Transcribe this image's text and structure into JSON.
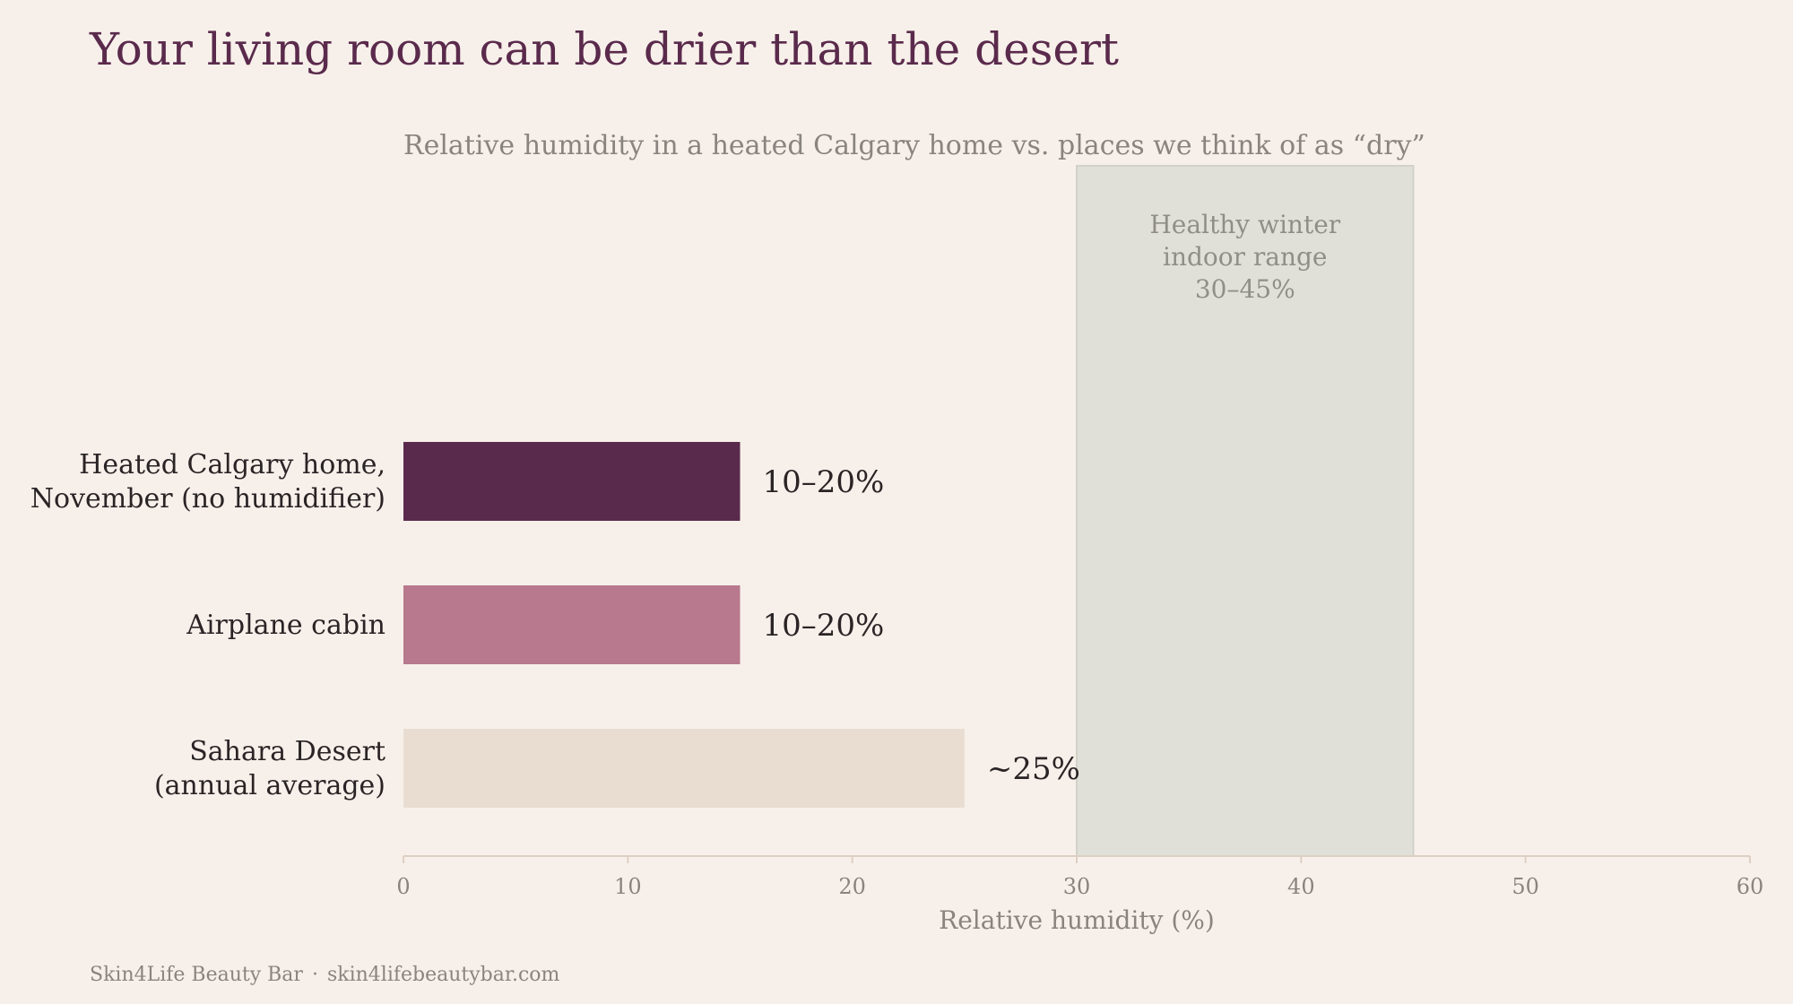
{
  "title": "Your living room can be drier than the desert",
  "subtitle": "Relative humidity in a heated Calgary home vs. places we think of as “dry”",
  "footer": {
    "brand": "Skin4Life Beauty Bar",
    "separator": "·",
    "url": "skin4lifebeautybar.com"
  },
  "colors": {
    "background": "#f7f0ea",
    "title": "#5a2a4c",
    "band_fill": "#e1e0d8",
    "band_stroke": "#d2d2c8"
  },
  "chart_data": {
    "type": "bar",
    "orientation": "horizontal",
    "title": "Your living room can be drier than the desert",
    "subtitle": "Relative humidity in a heated Calgary home vs. places we think of as “dry”",
    "xlabel": "Relative humidity (%)",
    "ylabel": "",
    "xlim": [
      0,
      60
    ],
    "xticks": [
      0,
      10,
      20,
      30,
      40,
      50,
      60
    ],
    "grid": false,
    "categories": [
      [
        "Heated Calgary home,",
        "November (no humidifier)"
      ],
      [
        "Airplane cabin"
      ],
      [
        "Sahara Desert",
        "(annual average)"
      ]
    ],
    "values": [
      15,
      15,
      25
    ],
    "data_labels": [
      "10–20%",
      "10–20%",
      "~25%"
    ],
    "bar_colors": [
      "#5a2a4c",
      "#b8798e",
      "#e8ddd0"
    ],
    "reference_band": {
      "from": 30,
      "to": 45,
      "label_lines": [
        "Healthy winter",
        "indoor range",
        "30–45%"
      ]
    }
  }
}
